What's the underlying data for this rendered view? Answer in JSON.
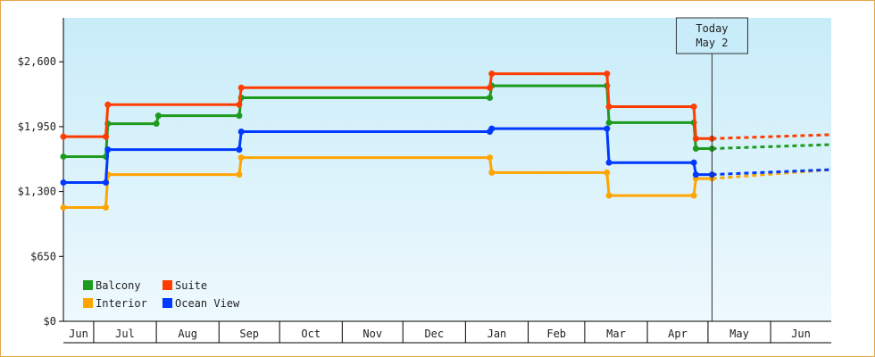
{
  "chart_data": {
    "type": "line",
    "title": "",
    "xlabel": "",
    "ylabel": "",
    "y_ticks": [
      "$0",
      "$650",
      "$1,300",
      "$1,950",
      "$2,600"
    ],
    "y_tick_values": [
      0,
      650,
      1300,
      1950,
      2600
    ],
    "ylim": [
      0,
      3040
    ],
    "months": [
      "Jun",
      "Jul",
      "Aug",
      "Sep",
      "Oct",
      "Nov",
      "Dec",
      "Jan",
      "Feb",
      "Mar",
      "Apr",
      "May",
      "Jun"
    ],
    "month_boundaries_day": [
      0,
      15,
      46,
      77,
      107,
      138,
      168,
      199,
      230,
      258,
      289,
      319,
      350,
      380
    ],
    "x_range_day": [
      0,
      380
    ],
    "today": {
      "label": "Today",
      "date": "May 2",
      "day": 321
    },
    "legend": {
      "placement": "bottom-left"
    },
    "series": [
      {
        "name": "Balcony",
        "color": "#1e9a1e",
        "points": [
          [
            0,
            1650
          ],
          [
            21,
            1650
          ],
          [
            22,
            1980
          ],
          [
            46,
            1980
          ],
          [
            47,
            2060
          ],
          [
            87,
            2060
          ],
          [
            88,
            2240
          ],
          [
            211,
            2240
          ],
          [
            212,
            2360
          ],
          [
            269,
            2360
          ],
          [
            270,
            1990
          ],
          [
            312,
            1990
          ],
          [
            313,
            1730
          ],
          [
            321,
            1730
          ]
        ],
        "projection": [
          [
            321,
            1730
          ],
          [
            380,
            1770
          ]
        ]
      },
      {
        "name": "Suite",
        "color": "#ff3d00",
        "points": [
          [
            0,
            1850
          ],
          [
            21,
            1850
          ],
          [
            22,
            2170
          ],
          [
            87,
            2170
          ],
          [
            88,
            2340
          ],
          [
            211,
            2340
          ],
          [
            212,
            2480
          ],
          [
            269,
            2480
          ],
          [
            270,
            2150
          ],
          [
            312,
            2150
          ],
          [
            313,
            1830
          ],
          [
            321,
            1830
          ]
        ],
        "projection": [
          [
            321,
            1830
          ],
          [
            380,
            1870
          ]
        ]
      },
      {
        "name": "Interior",
        "color": "#ffa500",
        "points": [
          [
            0,
            1140
          ],
          [
            21,
            1140
          ],
          [
            22,
            1470
          ],
          [
            87,
            1470
          ],
          [
            88,
            1640
          ],
          [
            211,
            1640
          ],
          [
            212,
            1490
          ],
          [
            269,
            1490
          ],
          [
            270,
            1260
          ],
          [
            312,
            1260
          ],
          [
            313,
            1430
          ],
          [
            321,
            1430
          ]
        ],
        "projection": [
          [
            321,
            1430
          ],
          [
            380,
            1520
          ]
        ]
      },
      {
        "name": "Ocean View",
        "color": "#0039ff",
        "points": [
          [
            0,
            1390
          ],
          [
            21,
            1390
          ],
          [
            22,
            1720
          ],
          [
            87,
            1720
          ],
          [
            88,
            1900
          ],
          [
            211,
            1900
          ],
          [
            212,
            1930
          ],
          [
            269,
            1930
          ],
          [
            270,
            1590
          ],
          [
            312,
            1590
          ],
          [
            313,
            1470
          ],
          [
            321,
            1470
          ]
        ],
        "projection": [
          [
            321,
            1470
          ],
          [
            380,
            1520
          ]
        ]
      }
    ]
  }
}
